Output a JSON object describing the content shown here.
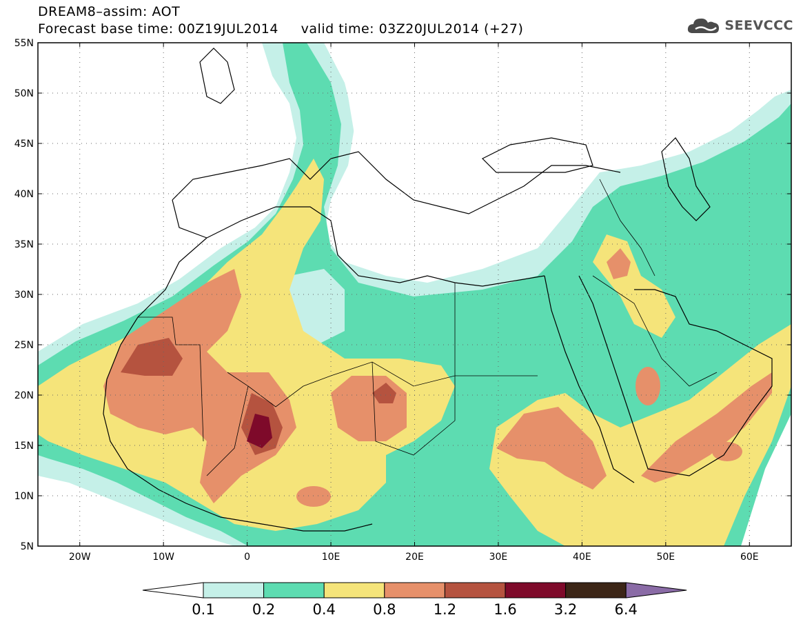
{
  "header": {
    "title": "DREAM8–assim: AOT",
    "subtitle_base": "Forecast base time: 00Z19JUL2014",
    "subtitle_valid": "valid time: 03Z20JUL2014 (+27)"
  },
  "logo": {
    "text": "SEEVCCC",
    "icon": "cloud-icon"
  },
  "map": {
    "lon_range": [
      -25,
      65
    ],
    "lat_range": [
      5,
      55
    ],
    "lon_ticks": [
      {
        "value": -20,
        "label": "20W"
      },
      {
        "value": -10,
        "label": "10W"
      },
      {
        "value": 0,
        "label": "0"
      },
      {
        "value": 10,
        "label": "10E"
      },
      {
        "value": 20,
        "label": "20E"
      },
      {
        "value": 30,
        "label": "30E"
      },
      {
        "value": 40,
        "label": "40E"
      },
      {
        "value": 50,
        "label": "50E"
      },
      {
        "value": 60,
        "label": "60E"
      }
    ],
    "lat_ticks": [
      {
        "value": 5,
        "label": "5N"
      },
      {
        "value": 10,
        "label": "10N"
      },
      {
        "value": 15,
        "label": "15N"
      },
      {
        "value": 20,
        "label": "20N"
      },
      {
        "value": 25,
        "label": "25N"
      },
      {
        "value": 30,
        "label": "30N"
      },
      {
        "value": 35,
        "label": "35N"
      },
      {
        "value": 40,
        "label": "40N"
      },
      {
        "value": 45,
        "label": "45N"
      },
      {
        "value": 50,
        "label": "50N"
      },
      {
        "value": 55,
        "label": "55N"
      }
    ],
    "gridlines": "dotted"
  },
  "colorbar": {
    "labels": [
      "0.1",
      "0.2",
      "0.4",
      "0.8",
      "1.2",
      "1.6",
      "3.2",
      "6.4"
    ],
    "colors": [
      "#ffffff",
      "#c5f0e8",
      "#5ddcb1",
      "#f5e47a",
      "#e6906a",
      "#b5533f",
      "#7e0a2a",
      "#3c2617",
      "#8a6ba6"
    ]
  }
}
